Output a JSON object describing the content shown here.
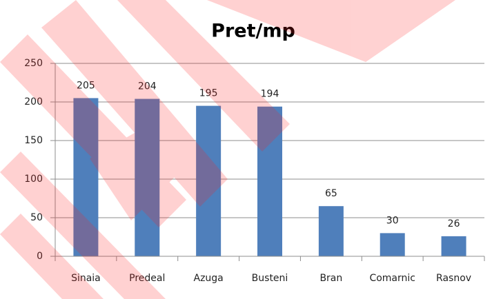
{
  "chart_data": {
    "type": "bar",
    "title": "Pret/mp",
    "categories": [
      "Sinaia",
      "Predeal",
      "Azuga",
      "Busteni",
      "Bran",
      "Comarnic",
      "Rasnov"
    ],
    "values": [
      205,
      204,
      195,
      194,
      65,
      30,
      26
    ],
    "color": "#4f7fbb",
    "ylim": [
      0,
      250
    ],
    "yticks": [
      0,
      50,
      100,
      150,
      200,
      250
    ],
    "grid": true
  }
}
